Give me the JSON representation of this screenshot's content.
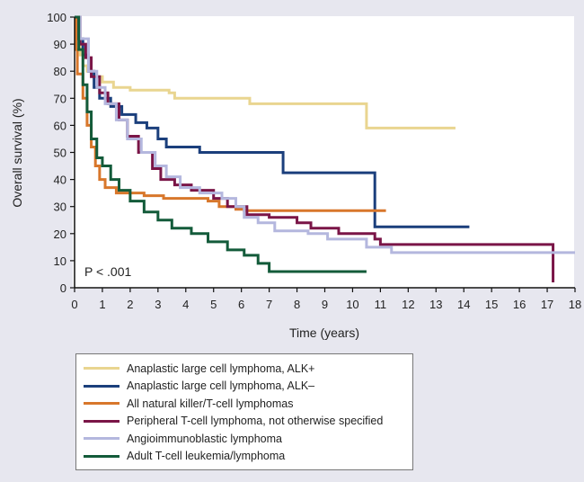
{
  "chart_data": {
    "type": "line",
    "title": "",
    "xlabel": "Time (years)",
    "ylabel": "Overall survival (%)",
    "xlim": [
      0,
      18
    ],
    "ylim": [
      0,
      100
    ],
    "xticks": [
      "0",
      "1",
      "2",
      "3",
      "4",
      "5",
      "6",
      "7",
      "8",
      "9",
      "10",
      "11",
      "12",
      "13",
      "14",
      "15",
      "16",
      "17",
      "18"
    ],
    "yticks": [
      "0",
      "10",
      "20",
      "30",
      "40",
      "50",
      "60",
      "70",
      "80",
      "90",
      "100"
    ],
    "annotation": "P < .001",
    "legend_position": "bottom",
    "series": [
      {
        "name": "Anaplastic large cell lymphoma, ALK+",
        "color": "#e9d590",
        "steps": [
          [
            0,
            100
          ],
          [
            0.1,
            92
          ],
          [
            0.2,
            86
          ],
          [
            0.3,
            82
          ],
          [
            0.45,
            80
          ],
          [
            0.7,
            78
          ],
          [
            1,
            76
          ],
          [
            1.4,
            74
          ],
          [
            2,
            73
          ],
          [
            3.4,
            72
          ],
          [
            3.6,
            70
          ],
          [
            6.3,
            68
          ],
          [
            10.5,
            59
          ],
          [
            13.7,
            59
          ]
        ]
      },
      {
        "name": "Anaplastic large cell lymphoma, ALK–",
        "color": "#1b3f7c",
        "steps": [
          [
            0,
            100
          ],
          [
            0.15,
            92
          ],
          [
            0.3,
            86
          ],
          [
            0.5,
            80
          ],
          [
            0.7,
            74
          ],
          [
            0.9,
            70
          ],
          [
            1.3,
            67
          ],
          [
            1.7,
            64
          ],
          [
            2.2,
            61
          ],
          [
            2.6,
            59
          ],
          [
            3,
            55
          ],
          [
            3.3,
            52
          ],
          [
            4.5,
            50
          ],
          [
            7.5,
            42.5
          ],
          [
            10.8,
            22.5
          ],
          [
            14.2,
            22.5
          ]
        ]
      },
      {
        "name": "All natural killer/T-cell lymphomas",
        "color": "#d8772b",
        "steps": [
          [
            0,
            100
          ],
          [
            0.05,
            88
          ],
          [
            0.1,
            79
          ],
          [
            0.3,
            70
          ],
          [
            0.45,
            60
          ],
          [
            0.6,
            52
          ],
          [
            0.75,
            45
          ],
          [
            0.9,
            40
          ],
          [
            1.1,
            37
          ],
          [
            1.5,
            35
          ],
          [
            2.5,
            34
          ],
          [
            3.2,
            33
          ],
          [
            4.8,
            32
          ],
          [
            5.2,
            30
          ],
          [
            5.8,
            29
          ],
          [
            6.1,
            28.5
          ],
          [
            11.2,
            28.5
          ]
        ]
      },
      {
        "name": "Peripheral T-cell lymphoma, not otherwise specified",
        "color": "#7a1547",
        "steps": [
          [
            0,
            100
          ],
          [
            0.2,
            90
          ],
          [
            0.4,
            85
          ],
          [
            0.6,
            78
          ],
          [
            0.9,
            72
          ],
          [
            1.2,
            68
          ],
          [
            1.6,
            62
          ],
          [
            1.9,
            56
          ],
          [
            2.3,
            50
          ],
          [
            2.8,
            44
          ],
          [
            3.1,
            40
          ],
          [
            3.6,
            38
          ],
          [
            4.2,
            36
          ],
          [
            5,
            33
          ],
          [
            5.5,
            30
          ],
          [
            6.2,
            27
          ],
          [
            7,
            26
          ],
          [
            8,
            24
          ],
          [
            8.5,
            22
          ],
          [
            9.5,
            20
          ],
          [
            10.8,
            18
          ],
          [
            11,
            16
          ],
          [
            17.2,
            16
          ],
          [
            17.21,
            2
          ]
        ]
      },
      {
        "name": "Angioimmunoblastic lymphoma",
        "color": "#b4b7de",
        "steps": [
          [
            0,
            100
          ],
          [
            0.2,
            92
          ],
          [
            0.5,
            80
          ],
          [
            0.8,
            74
          ],
          [
            1.1,
            68
          ],
          [
            1.5,
            62
          ],
          [
            1.9,
            55
          ],
          [
            2.4,
            50
          ],
          [
            2.9,
            45
          ],
          [
            3.3,
            41
          ],
          [
            3.8,
            37
          ],
          [
            4.5,
            35
          ],
          [
            5.3,
            33
          ],
          [
            5.8,
            30
          ],
          [
            6.1,
            26
          ],
          [
            6.6,
            24
          ],
          [
            7.2,
            21
          ],
          [
            8.4,
            20
          ],
          [
            9.1,
            18
          ],
          [
            10.5,
            15
          ],
          [
            11.4,
            13
          ],
          [
            18,
            13
          ]
        ]
      },
      {
        "name": "Adult T-cell leukemia/lymphoma",
        "color": "#135b3a",
        "steps": [
          [
            0,
            100
          ],
          [
            0.15,
            88
          ],
          [
            0.3,
            75
          ],
          [
            0.45,
            65
          ],
          [
            0.6,
            55
          ],
          [
            0.8,
            48
          ],
          [
            1,
            45
          ],
          [
            1.3,
            40
          ],
          [
            1.6,
            36
          ],
          [
            2,
            32
          ],
          [
            2.5,
            28
          ],
          [
            3,
            25
          ],
          [
            3.5,
            22
          ],
          [
            4.2,
            20
          ],
          [
            4.8,
            17
          ],
          [
            5.5,
            14
          ],
          [
            6.1,
            12
          ],
          [
            6.6,
            9
          ],
          [
            7,
            6
          ],
          [
            10.5,
            6
          ]
        ]
      }
    ]
  }
}
